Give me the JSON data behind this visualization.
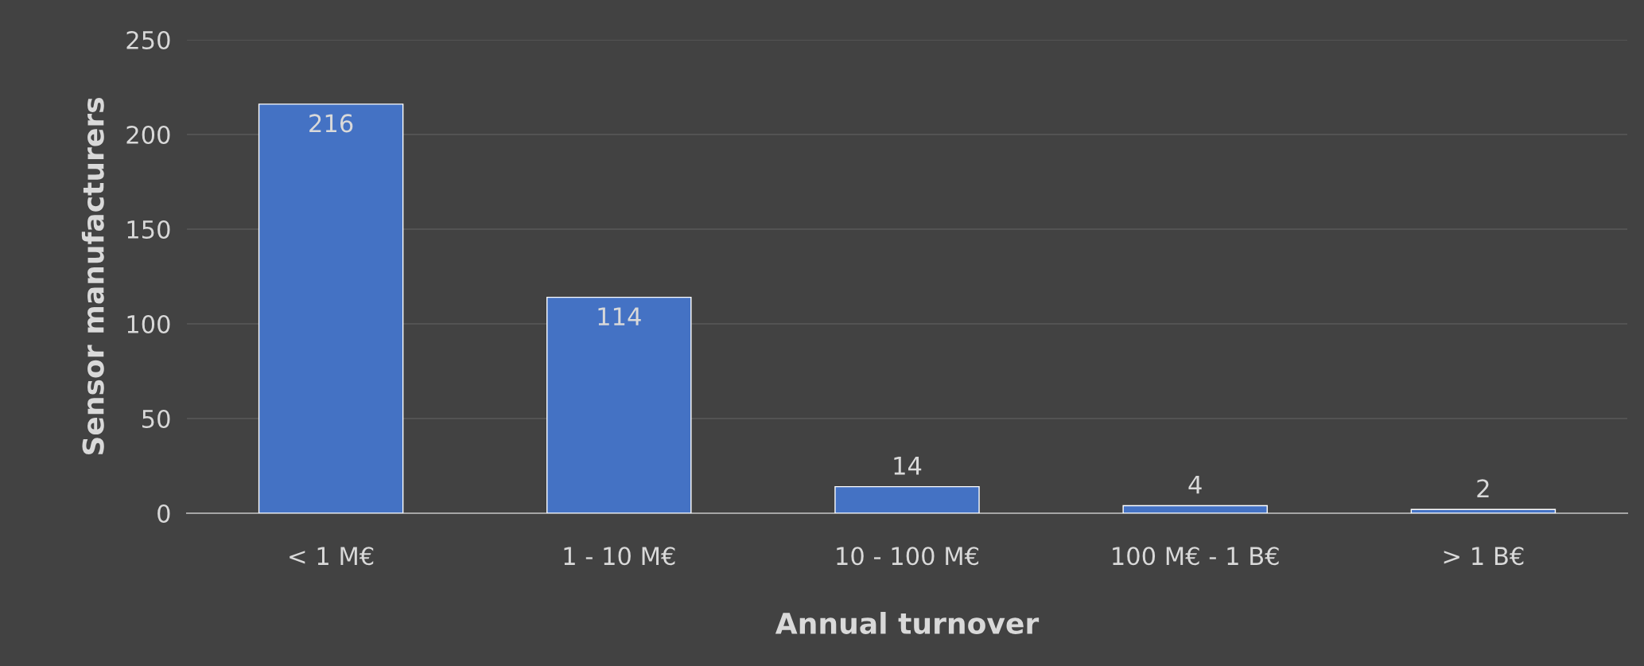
{
  "chart_data": {
    "type": "bar",
    "xlabel": "Annual turnover",
    "ylabel": "Sensor manufacturers",
    "categories": [
      "< 1 M€",
      "1 - 10 M€",
      "10 - 100 M€",
      "100 M€ - 1 B€",
      "> 1 B€"
    ],
    "values": [
      216,
      114,
      14,
      4,
      2
    ],
    "color": "#4472c4",
    "ylim": [
      0,
      250
    ],
    "yticks": [
      0,
      50,
      100,
      150,
      200,
      250
    ],
    "grid": "y",
    "data_labels": true,
    "legend": false
  }
}
